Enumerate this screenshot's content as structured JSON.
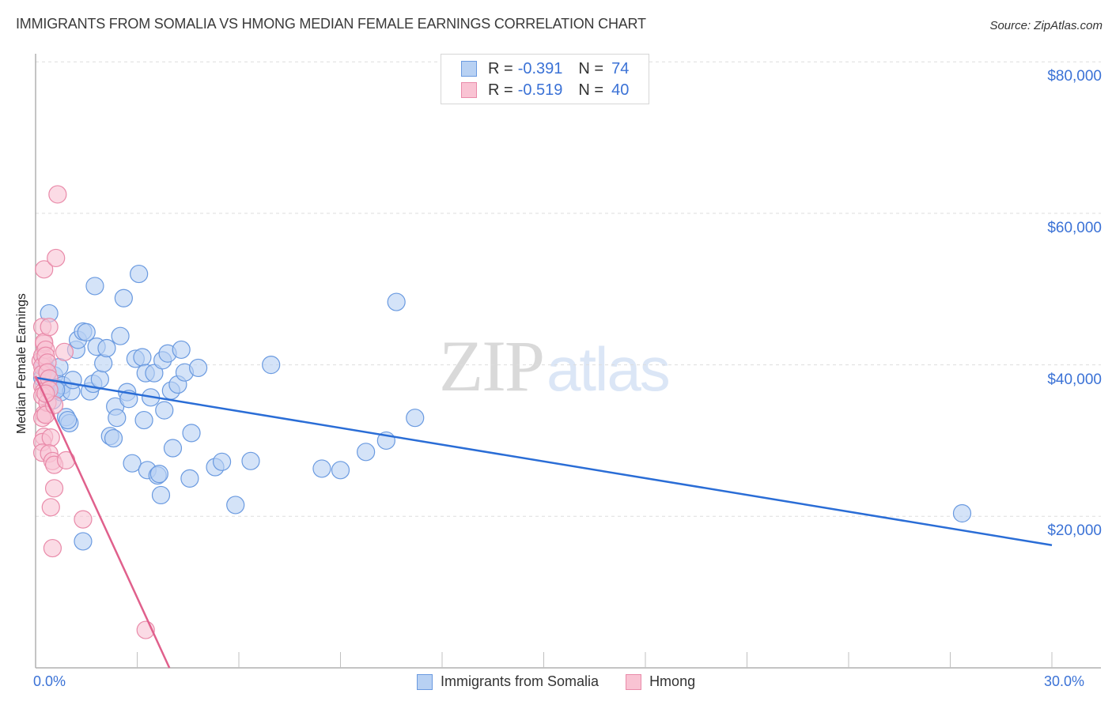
{
  "header": {
    "title": "IMMIGRANTS FROM SOMALIA VS HMONG MEDIAN FEMALE EARNINGS CORRELATION CHART",
    "source": "Source: ZipAtlas.com"
  },
  "watermark": {
    "zip": "ZIP",
    "atlas": "atlas"
  },
  "colors": {
    "somalia_fill": "#b8d1f3",
    "somalia_stroke": "#6a9ae0",
    "somalia_line": "#2a6dd6",
    "hmong_fill": "#f9c3d3",
    "hmong_stroke": "#e98aa9",
    "hmong_line": "#e0608c",
    "tick_text": "#3b72d6",
    "grid": "#dddddd"
  },
  "legend_top": {
    "rows": [
      {
        "series": "somalia",
        "r_label": "R =",
        "r_value": "-0.391",
        "n_label": "N =",
        "n_value": "74"
      },
      {
        "series": "hmong",
        "r_label": "R =",
        "r_value": "-0.519",
        "n_label": "N =",
        "n_value": "40"
      }
    ]
  },
  "legend_bottom": {
    "items": [
      {
        "series": "somalia",
        "label": "Immigrants from Somalia"
      },
      {
        "series": "hmong",
        "label": "Hmong"
      }
    ]
  },
  "axes": {
    "y_title": "Median Female Earnings",
    "y_ticks": [
      {
        "value": 80000,
        "label": "$80,000"
      },
      {
        "value": 60000,
        "label": "$60,000"
      },
      {
        "value": 40000,
        "label": "$40,000"
      },
      {
        "value": 20000,
        "label": "$20,000"
      }
    ],
    "x_ticks": [
      {
        "value": 0,
        "label": "0.0%"
      },
      {
        "value": 30,
        "label": "30.0%"
      }
    ]
  },
  "chart_data": {
    "type": "scatter",
    "title": "IMMIGRANTS FROM SOMALIA VS HMONG MEDIAN FEMALE EARNINGS CORRELATION CHART",
    "xlabel": "",
    "ylabel": "Median Female Earnings",
    "xlim": [
      0,
      30
    ],
    "ylim": [
      0,
      82000
    ],
    "x_unit": "%",
    "grid": true,
    "legend_position": "bottom",
    "series": [
      {
        "name": "Immigrants from Somalia",
        "R": -0.391,
        "N": 74,
        "trend": {
          "x": [
            0.0,
            30.0
          ],
          "y": [
            38300,
            16200
          ]
        },
        "points": [
          [
            0.2,
            38300
          ],
          [
            0.25,
            40200
          ],
          [
            0.3,
            39500
          ],
          [
            0.35,
            37800
          ],
          [
            0.4,
            46800
          ],
          [
            0.45,
            36500
          ],
          [
            0.5,
            35300
          ],
          [
            0.55,
            38600
          ],
          [
            0.6,
            37000
          ],
          [
            0.7,
            39700
          ],
          [
            0.75,
            36400
          ],
          [
            0.8,
            37300
          ],
          [
            0.9,
            33100
          ],
          [
            1.0,
            32300
          ],
          [
            1.05,
            36500
          ],
          [
            1.1,
            38000
          ],
          [
            1.2,
            42000
          ],
          [
            1.25,
            43300
          ],
          [
            1.4,
            44400
          ],
          [
            1.5,
            44300
          ],
          [
            1.6,
            36500
          ],
          [
            1.7,
            37500
          ],
          [
            1.75,
            50400
          ],
          [
            1.8,
            42400
          ],
          [
            1.9,
            38100
          ],
          [
            2.0,
            40200
          ],
          [
            2.1,
            42200
          ],
          [
            2.2,
            30600
          ],
          [
            2.3,
            30300
          ],
          [
            2.35,
            34500
          ],
          [
            2.4,
            33000
          ],
          [
            2.5,
            43800
          ],
          [
            2.6,
            48800
          ],
          [
            2.7,
            36400
          ],
          [
            2.75,
            35500
          ],
          [
            2.85,
            27000
          ],
          [
            2.95,
            40800
          ],
          [
            3.05,
            52000
          ],
          [
            3.15,
            41000
          ],
          [
            3.2,
            32700
          ],
          [
            3.25,
            38900
          ],
          [
            3.3,
            26100
          ],
          [
            3.4,
            35700
          ],
          [
            3.5,
            38900
          ],
          [
            3.6,
            25400
          ],
          [
            3.65,
            25600
          ],
          [
            3.7,
            22800
          ],
          [
            3.75,
            40600
          ],
          [
            3.8,
            34000
          ],
          [
            3.9,
            41500
          ],
          [
            4.0,
            36600
          ],
          [
            4.05,
            29000
          ],
          [
            4.2,
            37400
          ],
          [
            4.3,
            42000
          ],
          [
            4.4,
            39000
          ],
          [
            4.55,
            25000
          ],
          [
            4.6,
            31000
          ],
          [
            4.8,
            39600
          ],
          [
            5.3,
            26500
          ],
          [
            5.5,
            27200
          ],
          [
            5.9,
            21500
          ],
          [
            6.35,
            27300
          ],
          [
            6.95,
            40000
          ],
          [
            8.45,
            26300
          ],
          [
            9.0,
            26100
          ],
          [
            9.75,
            28500
          ],
          [
            10.35,
            30000
          ],
          [
            10.65,
            48300
          ],
          [
            11.2,
            33000
          ],
          [
            27.35,
            20400
          ],
          [
            1.4,
            16700
          ],
          [
            0.95,
            32700
          ],
          [
            0.35,
            38900
          ],
          [
            0.6,
            36700
          ]
        ]
      },
      {
        "name": "Hmong",
        "R": -0.519,
        "N": 40,
        "trend": {
          "x": [
            0.0,
            3.95
          ],
          "y": [
            38500,
            0
          ]
        },
        "points": [
          [
            0.15,
            40500
          ],
          [
            0.2,
            41200
          ],
          [
            0.2,
            39800
          ],
          [
            0.2,
            38800
          ],
          [
            0.25,
            42800
          ],
          [
            0.2,
            37200
          ],
          [
            0.25,
            36500
          ],
          [
            0.2,
            35900
          ],
          [
            0.25,
            33500
          ],
          [
            0.2,
            33000
          ],
          [
            0.25,
            30500
          ],
          [
            0.2,
            29800
          ],
          [
            0.2,
            28400
          ],
          [
            0.25,
            52600
          ],
          [
            0.2,
            45000
          ],
          [
            0.25,
            43000
          ],
          [
            0.3,
            42000
          ],
          [
            0.3,
            41200
          ],
          [
            0.35,
            40300
          ],
          [
            0.35,
            39000
          ],
          [
            0.4,
            38200
          ],
          [
            0.4,
            36700
          ],
          [
            0.35,
            35000
          ],
          [
            0.3,
            33400
          ],
          [
            0.45,
            30400
          ],
          [
            0.4,
            28300
          ],
          [
            0.5,
            27300
          ],
          [
            0.55,
            26800
          ],
          [
            0.6,
            54100
          ],
          [
            0.65,
            62500
          ],
          [
            0.55,
            23700
          ],
          [
            0.45,
            21200
          ],
          [
            0.5,
            15800
          ],
          [
            0.85,
            41700
          ],
          [
            0.9,
            27400
          ],
          [
            1.4,
            19600
          ],
          [
            0.55,
            34700
          ],
          [
            0.4,
            45000
          ],
          [
            0.3,
            36200
          ],
          [
            3.25,
            5000
          ]
        ]
      }
    ]
  }
}
